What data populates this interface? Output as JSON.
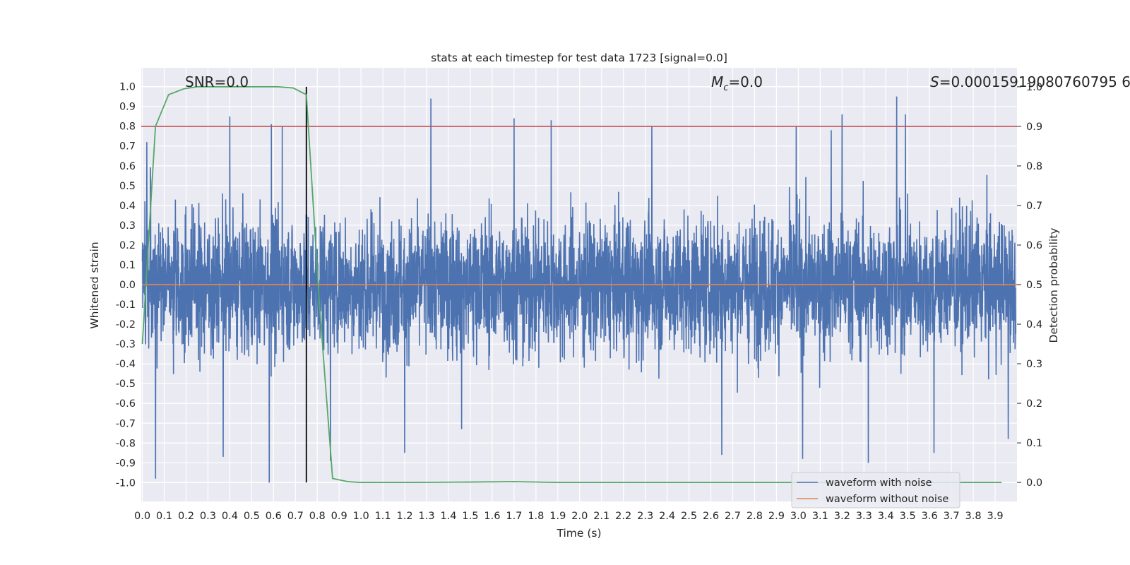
{
  "chart_data": {
    "type": "line",
    "title": "stats at each timestep for test data 1723 [signal=0.0]",
    "xlabel": "Time (s)",
    "ylabel": "Whitened strain",
    "y2label": "Detection probability",
    "xlim": [
      -0.005,
      4.0
    ],
    "ylim": [
      -1.095,
      1.095
    ],
    "y2lim": [
      -0.048,
      1.048
    ],
    "x_ticks": [
      "0.0",
      "0.1",
      "0.2",
      "0.3",
      "0.4",
      "0.5",
      "0.6",
      "0.7",
      "0.8",
      "0.9",
      "1.0",
      "1.1",
      "1.2",
      "1.3",
      "1.4",
      "1.5",
      "1.6",
      "1.7",
      "1.8",
      "1.9",
      "2.0",
      "2.1",
      "2.2",
      "2.3",
      "2.4",
      "2.5",
      "2.6",
      "2.7",
      "2.8",
      "2.9",
      "3.0",
      "3.1",
      "3.2",
      "3.3",
      "3.4",
      "3.5",
      "3.6",
      "3.7",
      "3.8",
      "3.9"
    ],
    "y_ticks": [
      "1.0",
      "0.9",
      "0.8",
      "0.7",
      "0.6",
      "0.5",
      "0.4",
      "0.3",
      "0.2",
      "0.1",
      "0.0",
      "-0.1",
      "-0.2",
      "-0.3",
      "-0.4",
      "-0.5",
      "-0.6",
      "-0.7",
      "-0.8",
      "-0.9",
      "-1.0"
    ],
    "y2_ticks": [
      "1.0",
      "0.9",
      "0.8",
      "0.7",
      "0.6",
      "0.5",
      "0.4",
      "0.3",
      "0.2",
      "0.1",
      "0.0"
    ],
    "annotations": {
      "snr": "SNR=0.0",
      "mc_symbol": "M",
      "mc_sub": "c",
      "mc_value": "=0.0",
      "s_symbol": "S",
      "s_value": "=0.00015919080760795 6"
    },
    "series": [
      {
        "name": "waveform with noise",
        "color": "#4c72b0",
        "description": "dense whitened strain noise, amplitude within about ±1.0",
        "peaks_top": [
          [
            0.02,
            0.72
          ],
          [
            0.06,
            0.6
          ],
          [
            0.4,
            0.85
          ],
          [
            0.59,
            0.81
          ],
          [
            0.64,
            0.8
          ],
          [
            1.32,
            0.94
          ],
          [
            1.7,
            0.84
          ],
          [
            1.87,
            0.83
          ],
          [
            2.33,
            0.8
          ],
          [
            2.99,
            0.8
          ],
          [
            3.15,
            0.78
          ],
          [
            3.2,
            0.86
          ],
          [
            3.45,
            0.95
          ],
          [
            3.49,
            0.86
          ]
        ],
        "peaks_bottom": [
          [
            0.06,
            -0.98
          ],
          [
            0.37,
            -0.87
          ],
          [
            0.58,
            -1.0
          ],
          [
            0.86,
            -0.89
          ],
          [
            1.2,
            -0.85
          ],
          [
            1.46,
            -0.73
          ],
          [
            2.65,
            -0.86
          ],
          [
            3.02,
            -0.88
          ],
          [
            3.32,
            -0.9
          ],
          [
            3.62,
            -0.85
          ],
          [
            3.96,
            -0.78
          ]
        ]
      },
      {
        "name": "waveform without noise",
        "color": "#dd8452",
        "x": [
          0.0,
          4.0
        ],
        "y": [
          0.0,
          0.0
        ]
      },
      {
        "name": "Detection probability",
        "color": "#55a868",
        "axis": "y2",
        "x": [
          0.0,
          0.06,
          0.12,
          0.19,
          0.25,
          0.31,
          0.37,
          0.44,
          0.5,
          0.56,
          0.62,
          0.69,
          0.75,
          0.81,
          0.87,
          0.94,
          1.0,
          1.25,
          1.5,
          1.7,
          1.9,
          2.5,
          3.0,
          3.5,
          3.93
        ],
        "y": [
          0.35,
          0.9,
          0.98,
          0.995,
          1.0,
          1.0,
          1.0,
          1.0,
          1.0,
          1.0,
          1.0,
          0.997,
          0.98,
          0.45,
          0.01,
          0.002,
          0.0,
          0.0,
          0.001,
          0.002,
          0.0,
          0.0,
          0.0,
          0.0,
          0.0
        ]
      }
    ],
    "threshold": {
      "axis": "y2",
      "value": 0.9,
      "color": "#c44e52"
    },
    "marker_vline": {
      "x": 0.75,
      "color": "#000000"
    },
    "legend": {
      "position": "lower-right",
      "entries": [
        {
          "label": "waveform with noise",
          "color": "#4c72b0"
        },
        {
          "label": "waveform without noise",
          "color": "#dd8452"
        }
      ]
    },
    "background": "#eaeaf2",
    "grid": true
  }
}
